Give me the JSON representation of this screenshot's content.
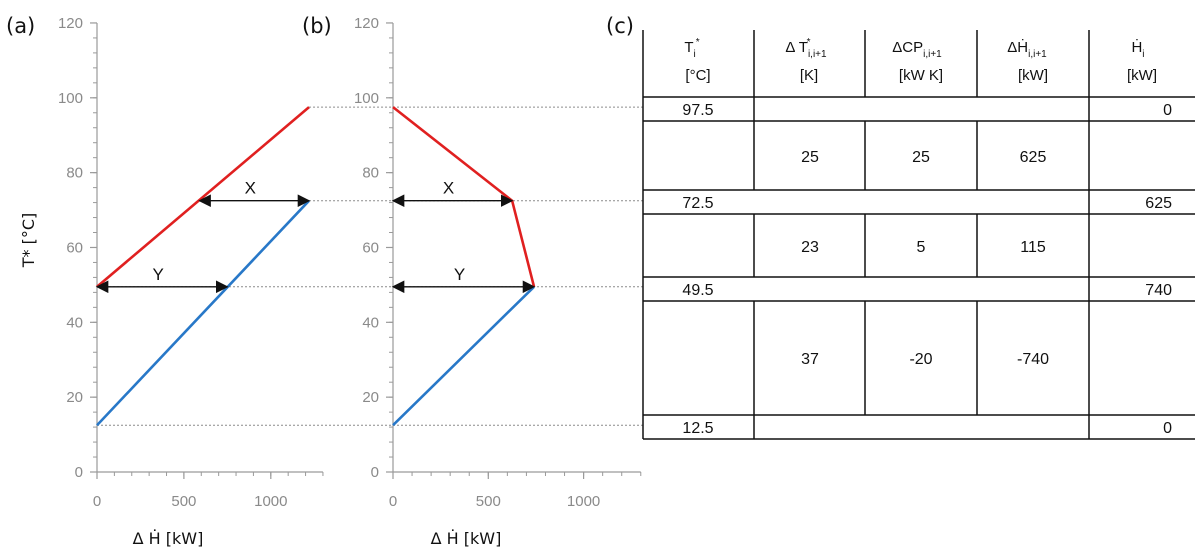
{
  "panels": {
    "a": {
      "label": "(a)"
    },
    "b": {
      "label": "(b)"
    },
    "c": {
      "label": "(c)"
    }
  },
  "colors": {
    "hot": "#e02020",
    "cold": "#2878c8",
    "axis": "#9a9a9a",
    "guide": "#8c8c8c",
    "arrow": "#111111"
  },
  "chart_data": [
    {
      "type": "line",
      "panel": "a",
      "xlabel": "Δ Ḣ [kW]",
      "ylabel": "T* [°C]",
      "xlim": [
        0,
        1300
      ],
      "ylim": [
        0,
        120
      ],
      "xticks": [
        0,
        500,
        1000
      ],
      "yticks": [
        0,
        20,
        40,
        60,
        80,
        100,
        120
      ],
      "series": [
        {
          "color": "hot",
          "x": [
            0,
            1220
          ],
          "y": [
            49.5,
            97.5
          ]
        },
        {
          "color": "cold",
          "x": [
            0,
            1220
          ],
          "y": [
            12.5,
            72.5
          ]
        }
      ],
      "annotations": [
        {
          "text": "X",
          "y": 72.5,
          "x_from": 590,
          "x_to": 1220
        },
        {
          "text": "Y",
          "y": 49.5,
          "x_from": 0,
          "x_to": 750
        }
      ]
    },
    {
      "type": "line",
      "panel": "b",
      "xlabel": "Δ Ḣ [kW]",
      "xlim": [
        0,
        1300
      ],
      "ylim": [
        0,
        120
      ],
      "xticks": [
        0,
        500,
        1000
      ],
      "yticks": [
        0,
        20,
        40,
        60,
        80,
        100,
        120
      ],
      "series": [
        {
          "color": "hot",
          "x": [
            0,
            625,
            740
          ],
          "y": [
            97.5,
            72.5,
            49.5
          ]
        },
        {
          "color": "cold",
          "x": [
            0,
            740
          ],
          "y": [
            12.5,
            49.5
          ]
        }
      ],
      "annotations": [
        {
          "text": "X",
          "y": 72.5,
          "x_from": 0,
          "x_to": 625
        },
        {
          "text": "Y",
          "y": 49.5,
          "x_from": 0,
          "x_to": 740
        }
      ],
      "guides": [
        97.5,
        72.5,
        49.5,
        12.5
      ]
    }
  ],
  "table": {
    "headers": {
      "t": {
        "main": "T",
        "sub": "i",
        "sup": "*",
        "unit": "[°C]"
      },
      "dt": {
        "main": "Δ T",
        "sub": "i,i+1",
        "sup": "*",
        "unit": "[K]"
      },
      "dcp": {
        "main": "ΔCP",
        "sub": "i,i+1",
        "unit": "[kW K]"
      },
      "dh": {
        "main": "ΔḢ",
        "sub": "i,i+1",
        "unit": "[kW]"
      },
      "h": {
        "main": "Ḣ",
        "sub": "i",
        "unit": "[kW]"
      }
    },
    "temps": [
      "97.5",
      "72.5",
      "49.5",
      "12.5"
    ],
    "cumulative": [
      "0",
      "625",
      "740",
      "0"
    ],
    "intervals": [
      {
        "dt": "25",
        "dcp": "25",
        "dh": "625"
      },
      {
        "dt": "23",
        "dcp": "5",
        "dh": "115"
      },
      {
        "dt": "37",
        "dcp": "-20",
        "dh": "-740"
      }
    ]
  }
}
